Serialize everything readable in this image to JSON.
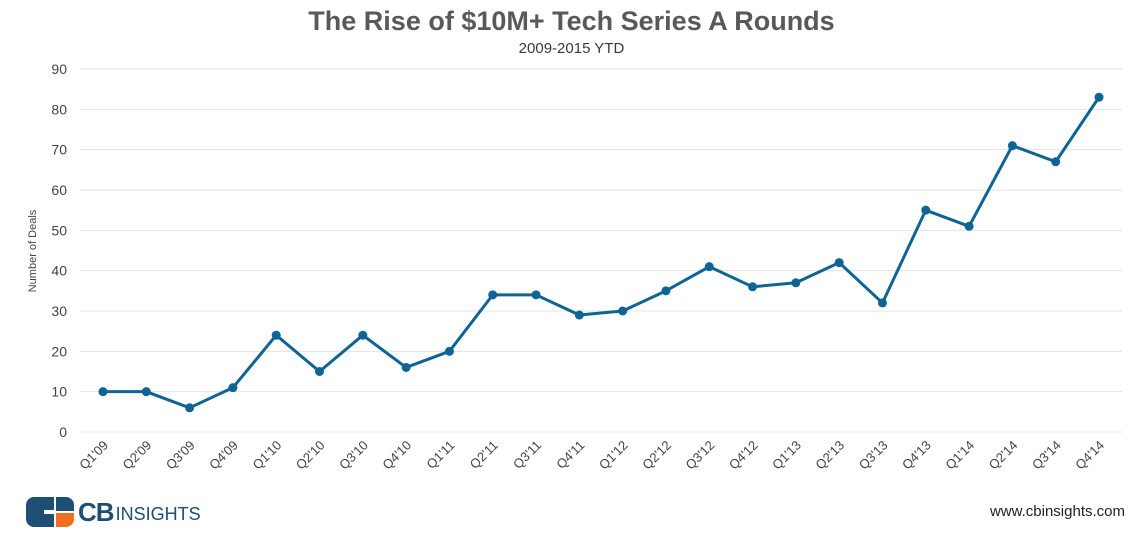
{
  "chart_data": {
    "type": "line",
    "title": "The Rise of $10M+ Tech Series A Rounds",
    "subtitle": "2009-2015 YTD",
    "xlabel": "",
    "ylabel": "Number of Deals",
    "ylim": [
      0,
      90
    ],
    "yticks": [
      0,
      10,
      20,
      30,
      40,
      50,
      60,
      70,
      80,
      90
    ],
    "grid": true,
    "legend": "none",
    "categories": [
      "Q1'09",
      "Q2'09",
      "Q3'09",
      "Q4'09",
      "Q1'10",
      "Q2'10",
      "Q3'10",
      "Q4'10",
      "Q1'11",
      "Q2'11",
      "Q3'11",
      "Q4'11",
      "Q1'12",
      "Q2'12",
      "Q3'12",
      "Q4'12",
      "Q1'13",
      "Q2'13",
      "Q3'13",
      "Q4'13",
      "Q1'14",
      "Q2'14",
      "Q3'14",
      "Q4'14"
    ],
    "series": [
      {
        "name": "Number of Deals",
        "color": "#0f6496",
        "values": [
          10,
          10,
          6,
          11,
          24,
          15,
          24,
          16,
          20,
          34,
          34,
          29,
          30,
          35,
          41,
          36,
          37,
          42,
          32,
          55,
          51,
          71,
          67,
          83
        ]
      }
    ]
  },
  "footer": {
    "brand_cb": "CB",
    "brand_insights": "INSIGHTS",
    "url": "www.cbinsights.com"
  },
  "colors": {
    "line": "#0f6496",
    "grid": "#e3e3e3",
    "logo_navy": "#1d4e74",
    "logo_orange": "#f26f21"
  }
}
